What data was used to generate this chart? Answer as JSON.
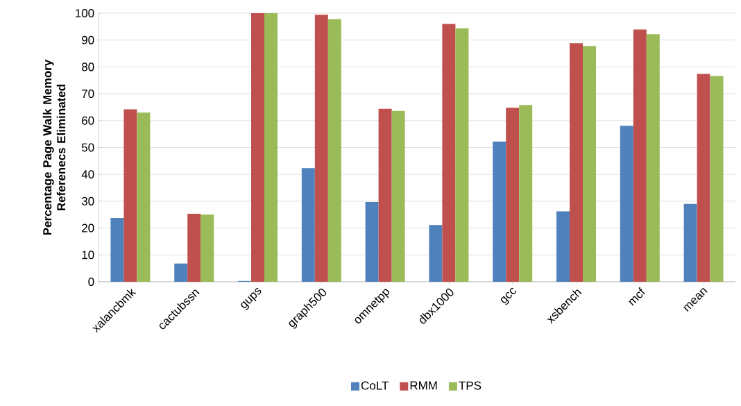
{
  "chart_data": {
    "type": "bar",
    "ylabel": "Percentage Page Walk Memory Referenecs Eliminated",
    "categories": [
      "xalancbmk",
      "cactubssn",
      "gups",
      "graph500",
      "omnetpp",
      "dbx1000",
      "gcc",
      "xsbench",
      "mcf",
      "mean"
    ],
    "series": [
      {
        "name": "CoLT",
        "color": "#4f81bd",
        "values": [
          23.8,
          6.8,
          0.3,
          42.3,
          29.7,
          21.1,
          52.2,
          26.2,
          58.1,
          29.0
        ]
      },
      {
        "name": "RMM",
        "color": "#c0504d",
        "values": [
          64.2,
          25.3,
          100,
          99.4,
          64.4,
          96.0,
          64.8,
          88.8,
          93.9,
          77.4
        ]
      },
      {
        "name": "TPS",
        "color": "#9bbb59",
        "values": [
          63.0,
          25.0,
          100,
          97.8,
          63.6,
          94.4,
          65.8,
          87.8,
          92.2,
          76.6
        ]
      }
    ],
    "ylim": [
      0,
      100
    ],
    "yticks": [
      0,
      10,
      20,
      30,
      40,
      50,
      60,
      70,
      80,
      90,
      100
    ],
    "grid": "y",
    "legend": "bottom"
  }
}
